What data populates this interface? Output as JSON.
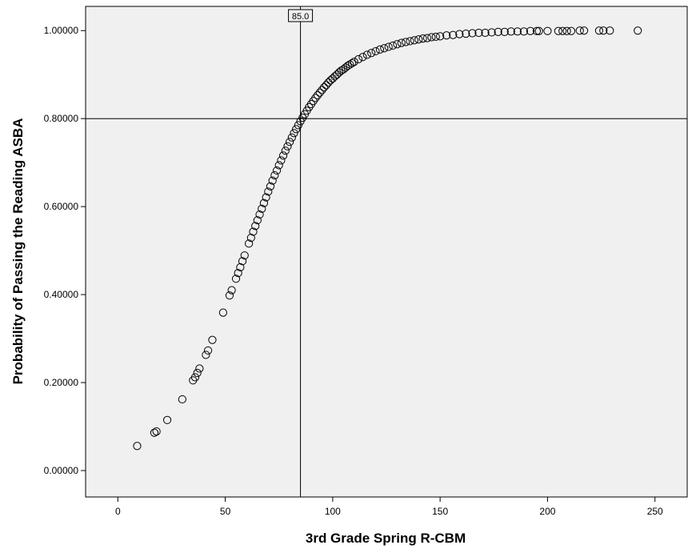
{
  "chart_data": {
    "type": "scatter",
    "xlabel": "3rd Grade Spring R-CBM",
    "ylabel": "Probability of Passing the Reading ASBA",
    "xlim": [
      -15,
      265
    ],
    "ylim": [
      -0.06,
      1.055
    ],
    "x_ticks": [
      0,
      50,
      100,
      150,
      200,
      250
    ],
    "x_tick_labels": [
      "0",
      "50",
      "100",
      "150",
      "200",
      "250"
    ],
    "y_ticks": [
      0,
      0.2,
      0.4,
      0.6,
      0.8,
      1.0
    ],
    "y_tick_labels": [
      "0.00000",
      "0.20000",
      "0.40000",
      "0.60000",
      "0.80000",
      "1.00000"
    ],
    "grid": false,
    "plot_background": "#f0f0f0",
    "marker_color": "#000000",
    "reference_lines": {
      "vertical": {
        "x": 85,
        "label": "85.0"
      },
      "horizontal": {
        "y": 0.8
      }
    },
    "points": [
      [
        9,
        0.056
      ],
      [
        17,
        0.086
      ],
      [
        18,
        0.089
      ],
      [
        23,
        0.115
      ],
      [
        30,
        0.162
      ],
      [
        35,
        0.205
      ],
      [
        36,
        0.212
      ],
      [
        37,
        0.222
      ],
      [
        38,
        0.232
      ],
      [
        41,
        0.263
      ],
      [
        42,
        0.273
      ],
      [
        44,
        0.297
      ],
      [
        49,
        0.359
      ],
      [
        52,
        0.398
      ],
      [
        53,
        0.41
      ],
      [
        55,
        0.436
      ],
      [
        56,
        0.449
      ],
      [
        57,
        0.462
      ],
      [
        58,
        0.476
      ],
      [
        59,
        0.489
      ],
      [
        61,
        0.516
      ],
      [
        62,
        0.529
      ],
      [
        63,
        0.543
      ],
      [
        64,
        0.556
      ],
      [
        65,
        0.569
      ],
      [
        66,
        0.582
      ],
      [
        67,
        0.595
      ],
      [
        68,
        0.608
      ],
      [
        69,
        0.621
      ],
      [
        70,
        0.634
      ],
      [
        71,
        0.646
      ],
      [
        72,
        0.659
      ],
      [
        73,
        0.671
      ],
      [
        74,
        0.682
      ],
      [
        75,
        0.694
      ],
      [
        76,
        0.705
      ],
      [
        77,
        0.716
      ],
      [
        78,
        0.727
      ],
      [
        79,
        0.737
      ],
      [
        80,
        0.747
      ],
      [
        81,
        0.757
      ],
      [
        82,
        0.767
      ],
      [
        83,
        0.776
      ],
      [
        84,
        0.785
      ],
      [
        85,
        0.794
      ],
      [
        86,
        0.802
      ],
      [
        87,
        0.81
      ],
      [
        88,
        0.818
      ],
      [
        89,
        0.826
      ],
      [
        90,
        0.833
      ],
      [
        91,
        0.84
      ],
      [
        92,
        0.847
      ],
      [
        93,
        0.853
      ],
      [
        94,
        0.859
      ],
      [
        95,
        0.865
      ],
      [
        96,
        0.871
      ],
      [
        97,
        0.876
      ],
      [
        98,
        0.882
      ],
      [
        99,
        0.887
      ],
      [
        100,
        0.891
      ],
      [
        101,
        0.896
      ],
      [
        102,
        0.9
      ],
      [
        103,
        0.905
      ],
      [
        104,
        0.909
      ],
      [
        105,
        0.912
      ],
      [
        106,
        0.916
      ],
      [
        107,
        0.92
      ],
      [
        108,
        0.923
      ],
      [
        109,
        0.926
      ],
      [
        110,
        0.929
      ],
      [
        112,
        0.935
      ],
      [
        114,
        0.94
      ],
      [
        116,
        0.945
      ],
      [
        118,
        0.949
      ],
      [
        120,
        0.953
      ],
      [
        122,
        0.957
      ],
      [
        124,
        0.96
      ],
      [
        126,
        0.963
      ],
      [
        128,
        0.966
      ],
      [
        130,
        0.969
      ],
      [
        132,
        0.972
      ],
      [
        134,
        0.974
      ],
      [
        136,
        0.976
      ],
      [
        138,
        0.978
      ],
      [
        140,
        0.98
      ],
      [
        142,
        0.982
      ],
      [
        144,
        0.983
      ],
      [
        146,
        0.985
      ],
      [
        148,
        0.986
      ],
      [
        150,
        0.987
      ],
      [
        153,
        0.989
      ],
      [
        156,
        0.99
      ],
      [
        159,
        0.992
      ],
      [
        162,
        0.993
      ],
      [
        165,
        0.994
      ],
      [
        168,
        0.995
      ],
      [
        171,
        0.995
      ],
      [
        174,
        0.996
      ],
      [
        177,
        0.997
      ],
      [
        180,
        0.997
      ],
      [
        183,
        0.998
      ],
      [
        186,
        0.998
      ],
      [
        189,
        0.998
      ],
      [
        192,
        0.999
      ],
      [
        195,
        0.999
      ],
      [
        196,
        0.999
      ],
      [
        200,
        0.999
      ],
      [
        205,
        0.999
      ],
      [
        207,
        0.999
      ],
      [
        209,
        0.999
      ],
      [
        211,
        0.999
      ],
      [
        215,
        1.0
      ],
      [
        217,
        1.0
      ],
      [
        224,
        1.0
      ],
      [
        226,
        1.0
      ],
      [
        229,
        1.0
      ],
      [
        242,
        1.0
      ]
    ]
  }
}
